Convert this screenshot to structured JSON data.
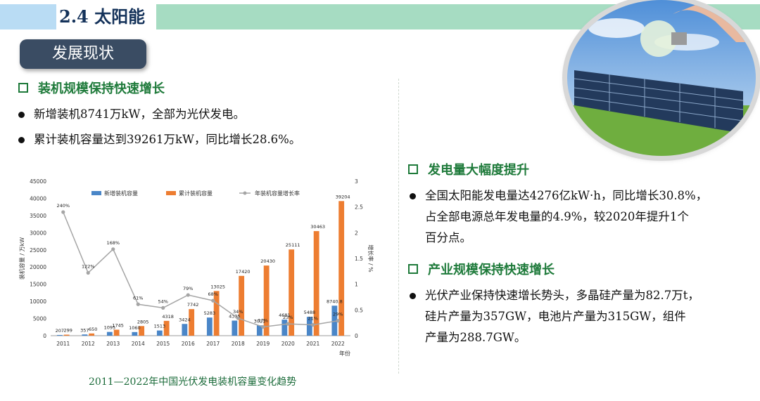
{
  "section_title": "2.4 太阳能",
  "badge": "发展现状",
  "left": {
    "heading": "装机规模保持快速增长",
    "bullets": [
      "新增装机8741万kW，全部为光伏发电。",
      "累计装机容量达到39261万kW，同比增长28.6%。"
    ]
  },
  "right": {
    "heading1": "发电量大幅度提升",
    "bullet1_lines": [
      "全国太阳能发电量达4276亿kW·h，同比增长30.8%，",
      "占全部电源总年发电量的4.9%，较2020年提升1个",
      "百分点。"
    ],
    "heading2": "产业规模保持快速增长",
    "bullet2_lines": [
      "光伏产业保持快速增长势头，多晶硅产量为82.7万t，",
      "硅片产量为357GW，电池片产量为315GW，组件",
      "产量为288.7GW。"
    ]
  },
  "caption": "2011—2022年中国光伏发电装机容量变化趋势",
  "colors": {
    "new": "#4a86c8",
    "cumulative": "#ed7d31",
    "rate": "#a5a5a5"
  },
  "chart_data": {
    "type": "bar",
    "categories": [
      "2011",
      "2012",
      "2013",
      "2014",
      "2015",
      "2016",
      "2017",
      "2018",
      "2019",
      "2020",
      "2021",
      "2022"
    ],
    "series": [
      {
        "name": "新增装机容量",
        "values": [
          207,
          357,
          1095,
          1060,
          1513,
          3424,
          5283,
          4395,
          3011,
          4681,
          5488,
          8740.8
        ]
      },
      {
        "name": "累计装机容量",
        "values": [
          299,
          650,
          1745,
          2805,
          4318,
          7742,
          13025,
          17420,
          20430,
          25111,
          30463,
          39204
        ]
      },
      {
        "name": "年装机容量增长率",
        "type": "line",
        "axis": "right",
        "values": [
          2.4,
          1.22,
          1.68,
          0.61,
          0.54,
          0.79,
          0.68,
          0.34,
          0.17,
          0.23,
          0.21,
          0.29
        ]
      }
    ],
    "value_labels": {
      "new": [
        "207",
        "357",
        "1095",
        "1060",
        "1513",
        "3424",
        "5283",
        "4395",
        "3011",
        "4681",
        "5488",
        "8740.8"
      ],
      "cumulative": [
        "299",
        "650",
        "1745",
        "2805",
        "4318",
        "7742",
        "13025",
        "17420",
        "20430",
        "25111",
        "30463",
        "39204"
      ],
      "rate": [
        "240%",
        "122%",
        "168%",
        "61%",
        "54%",
        "79%",
        "68%",
        "34%",
        "17%",
        "23%",
        "21%",
        "29%"
      ]
    },
    "y_ticks": [
      0,
      5000,
      10000,
      15000,
      20000,
      25000,
      30000,
      35000,
      40000,
      45000
    ],
    "y2_ticks": [
      "0",
      "0.5",
      "1",
      "1.5",
      "2",
      "2.5",
      "3"
    ],
    "ylabel": "装机容量 / 万kW",
    "y2label": "增长率 / %",
    "xlabel": "年份",
    "ylim": [
      0,
      45000
    ],
    "y2lim": [
      0,
      3
    ],
    "legend": "top"
  }
}
